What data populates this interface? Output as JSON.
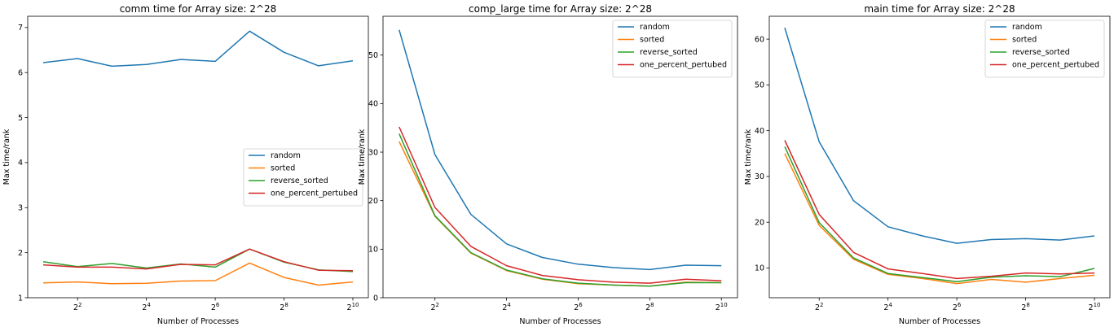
{
  "chart_data": [
    {
      "type": "line",
      "title": "comm time for Array size: 2^28",
      "xlabel": "Number of Processes",
      "ylabel": "Max time/rank",
      "xscale": "log2",
      "x": [
        2,
        4,
        8,
        16,
        32,
        64,
        128,
        256,
        512,
        1024
      ],
      "xticks": [
        4,
        16,
        64,
        256,
        1024
      ],
      "xtick_labels": [
        [
          "2",
          "2"
        ],
        [
          "2",
          "4"
        ],
        [
          "2",
          "6"
        ],
        [
          "2",
          "8"
        ],
        [
          "2",
          "10"
        ]
      ],
      "ylim": [
        1,
        7.25
      ],
      "yticks": [
        1,
        2,
        3,
        4,
        5,
        6,
        7
      ],
      "legend_position": "center-right",
      "series": [
        {
          "name": "random",
          "color": "#1f77b4",
          "values": [
            6.22,
            6.31,
            6.14,
            6.18,
            6.29,
            6.25,
            6.92,
            6.45,
            6.15,
            6.26
          ]
        },
        {
          "name": "sorted",
          "color": "#ff7f0e",
          "values": [
            1.33,
            1.35,
            1.31,
            1.32,
            1.37,
            1.38,
            1.77,
            1.45,
            1.28,
            1.35
          ]
        },
        {
          "name": "reverse_sorted",
          "color": "#2ca02c",
          "values": [
            1.8,
            1.69,
            1.76,
            1.66,
            1.75,
            1.68,
            2.08,
            1.79,
            1.62,
            1.58
          ]
        },
        {
          "name": "one_percent_pertubed",
          "color": "#d62728",
          "values": [
            1.73,
            1.68,
            1.68,
            1.64,
            1.74,
            1.73,
            2.08,
            1.8,
            1.61,
            1.6
          ]
        }
      ]
    },
    {
      "type": "line",
      "title": "comp_large time for Array size: 2^28",
      "xlabel": "Number of Processes",
      "ylabel": "Max time/rank",
      "xscale": "log2",
      "x": [
        2,
        4,
        8,
        16,
        32,
        64,
        128,
        256,
        512,
        1024
      ],
      "xticks": [
        4,
        16,
        64,
        256,
        1024
      ],
      "xtick_labels": [
        [
          "2",
          "2"
        ],
        [
          "2",
          "4"
        ],
        [
          "2",
          "6"
        ],
        [
          "2",
          "8"
        ],
        [
          "2",
          "10"
        ]
      ],
      "ylim": [
        0,
        58
      ],
      "yticks": [
        0,
        10,
        20,
        30,
        40,
        50
      ],
      "legend_position": "upper-right",
      "series": [
        {
          "name": "random",
          "color": "#1f77b4",
          "values": [
            55.2,
            29.5,
            17.2,
            11.1,
            8.3,
            6.9,
            6.2,
            5.8,
            6.7,
            6.6
          ]
        },
        {
          "name": "sorted",
          "color": "#ff7f0e",
          "values": [
            32.2,
            16.8,
            9.2,
            5.6,
            3.8,
            2.9,
            2.6,
            2.4,
            3.2,
            3.1
          ]
        },
        {
          "name": "reverse_sorted",
          "color": "#2ca02c",
          "values": [
            33.8,
            16.9,
            9.3,
            5.7,
            3.9,
            3.0,
            2.6,
            2.4,
            3.1,
            3.1
          ]
        },
        {
          "name": "one_percent_pertubed",
          "color": "#d62728",
          "values": [
            35.2,
            18.6,
            10.6,
            6.6,
            4.6,
            3.7,
            3.2,
            3.0,
            3.8,
            3.5
          ]
        }
      ]
    },
    {
      "type": "line",
      "title": "main time for Array size: 2^28",
      "xlabel": "Number of Processes",
      "ylabel": "Max time/rank",
      "xscale": "log2",
      "x": [
        2,
        4,
        8,
        16,
        32,
        64,
        128,
        256,
        512,
        1024
      ],
      "xticks": [
        4,
        16,
        64,
        256,
        1024
      ],
      "xtick_labels": [
        [
          "2",
          "2"
        ],
        [
          "2",
          "4"
        ],
        [
          "2",
          "6"
        ],
        [
          "2",
          "8"
        ],
        [
          "2",
          "10"
        ]
      ],
      "ylim": [
        3.5,
        65
      ],
      "yticks": [
        10,
        20,
        30,
        40,
        50,
        60
      ],
      "legend_position": "upper-right",
      "series": [
        {
          "name": "random",
          "color": "#1f77b4",
          "values": [
            62.5,
            37.6,
            24.7,
            19.0,
            17.0,
            15.4,
            16.2,
            16.4,
            16.1,
            17.0
          ]
        },
        {
          "name": "sorted",
          "color": "#ff7f0e",
          "values": [
            35.0,
            19.3,
            11.9,
            8.6,
            7.7,
            6.6,
            7.5,
            6.9,
            7.7,
            8.4
          ]
        },
        {
          "name": "reverse_sorted",
          "color": "#2ca02c",
          "values": [
            36.5,
            19.9,
            12.2,
            8.8,
            7.9,
            7.0,
            8.0,
            8.3,
            8.1,
            9.9
          ]
        },
        {
          "name": "one_percent_pertubed",
          "color": "#d62728",
          "values": [
            37.9,
            21.7,
            13.4,
            9.8,
            8.8,
            7.7,
            8.2,
            8.9,
            8.7,
            8.9
          ]
        }
      ]
    }
  ]
}
